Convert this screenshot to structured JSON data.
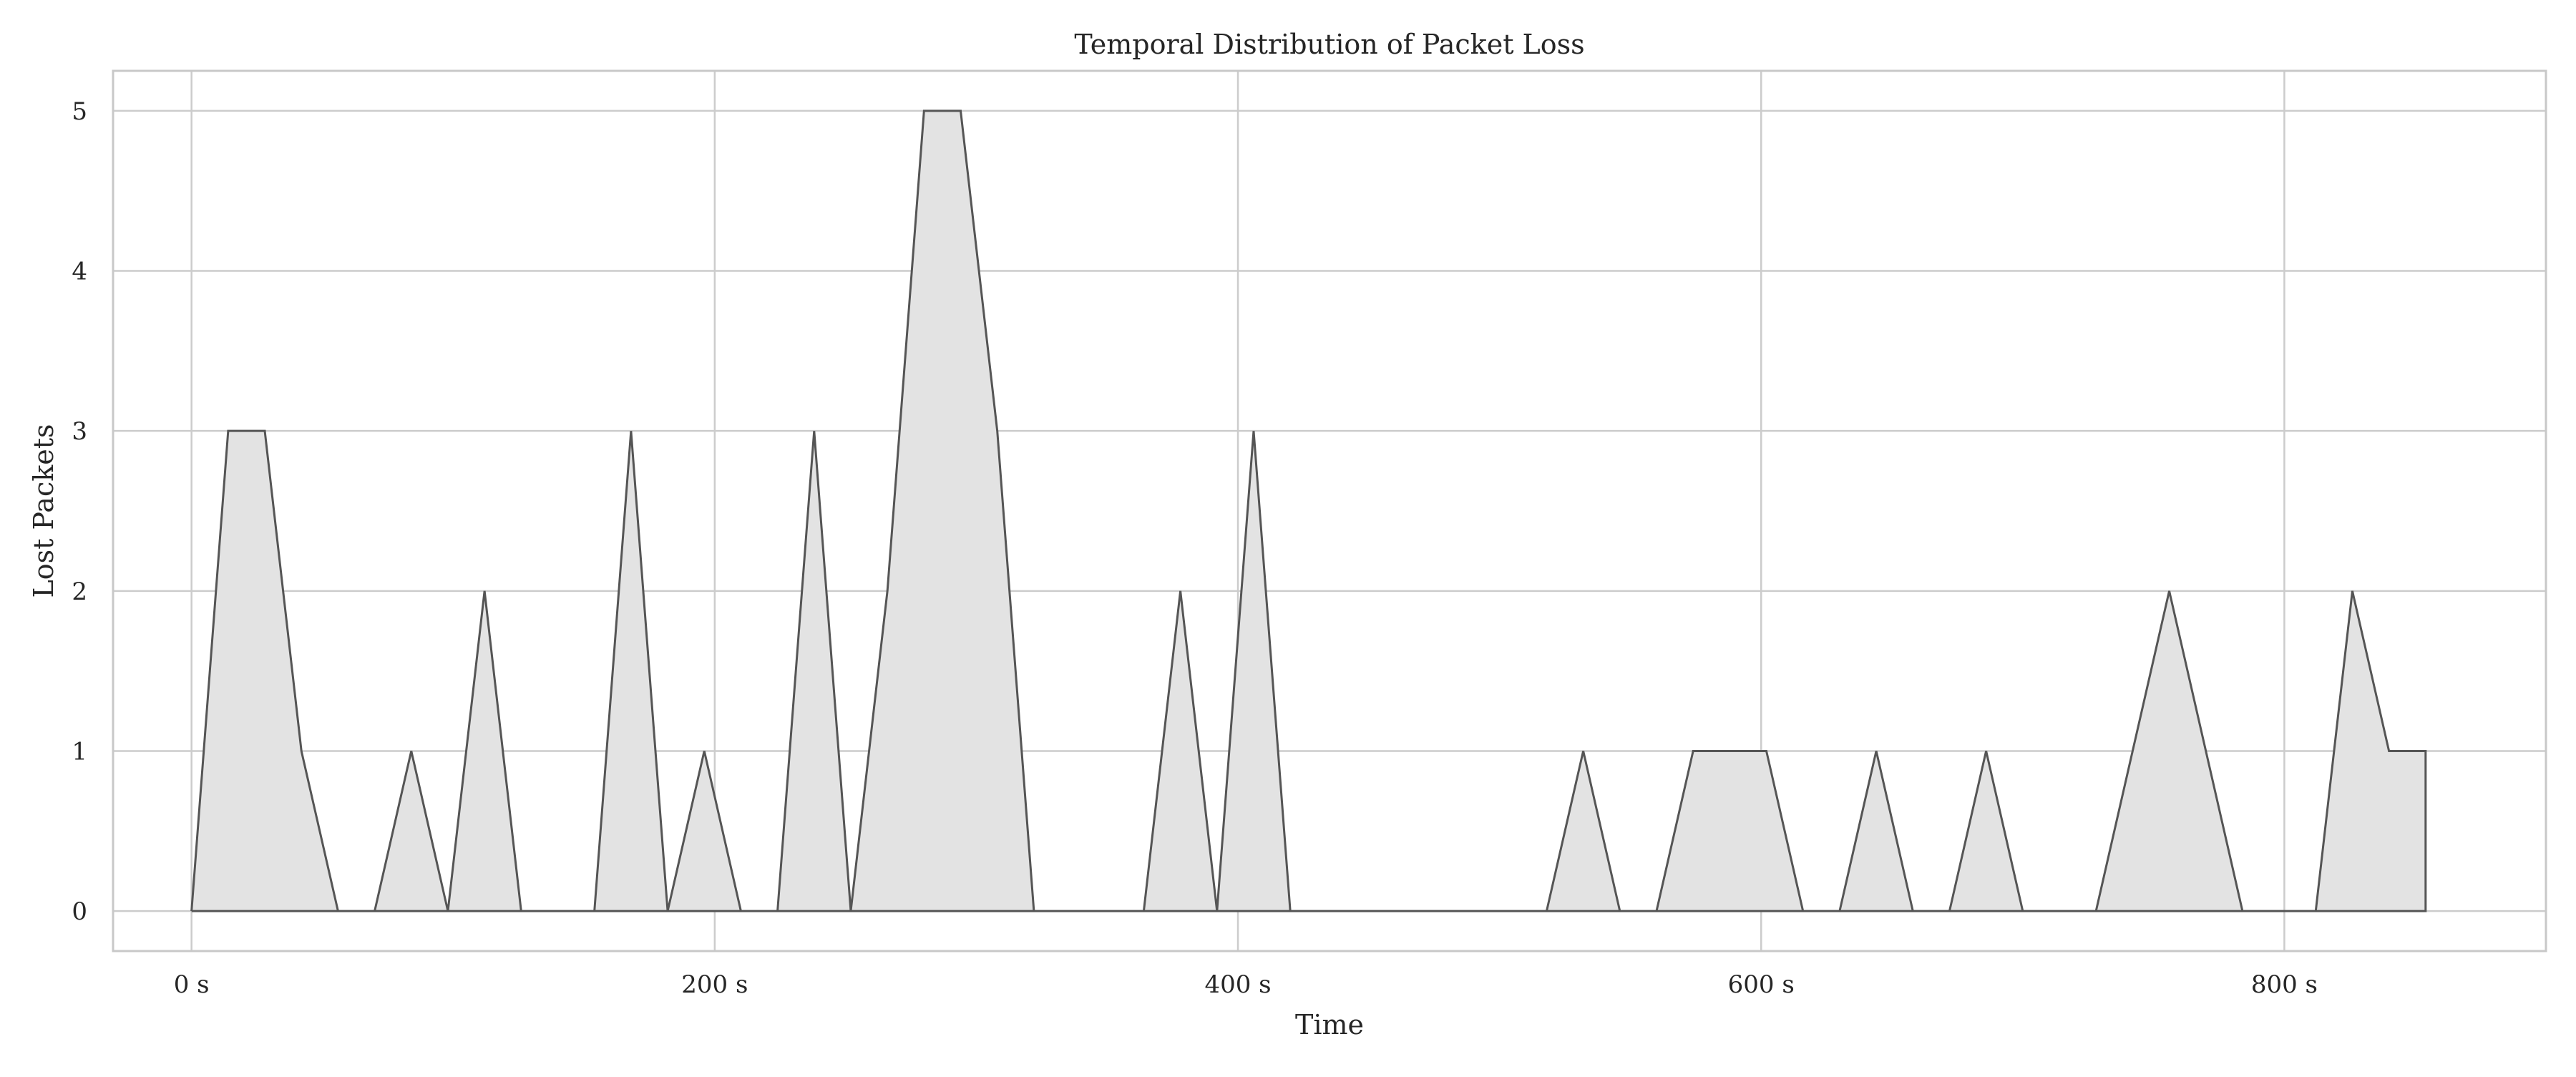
{
  "chart_data": {
    "type": "area",
    "title": "Temporal Distribution of Packet Loss",
    "xlabel": "Time",
    "ylabel": "Lost Packets",
    "xlim": [
      -30,
      900
    ],
    "ylim": [
      -0.25,
      5.25
    ],
    "grid": true,
    "x_ticks": [
      {
        "value": 0,
        "label": "0 s"
      },
      {
        "value": 200,
        "label": "200 s"
      },
      {
        "value": 400,
        "label": "400 s"
      },
      {
        "value": 600,
        "label": "600 s"
      },
      {
        "value": 800,
        "label": "800 s"
      }
    ],
    "y_ticks": [
      {
        "value": 0,
        "label": "0"
      },
      {
        "value": 1,
        "label": "1"
      },
      {
        "value": 2,
        "label": "2"
      },
      {
        "value": 3,
        "label": "3"
      },
      {
        "value": 4,
        "label": "4"
      },
      {
        "value": 5,
        "label": "5"
      }
    ],
    "series": [
      {
        "color": "#555555",
        "fill": "#e3e3e3",
        "x": [
          0,
          14,
          28,
          42,
          56,
          70,
          84,
          98,
          112,
          126,
          140,
          154,
          168,
          182,
          196,
          210,
          224,
          238,
          252,
          266,
          280,
          294,
          308,
          322,
          336,
          350,
          364,
          378,
          392,
          406,
          420,
          434,
          448,
          462,
          476,
          490,
          504,
          518,
          532,
          546,
          560,
          574,
          588,
          602,
          616,
          630,
          644,
          658,
          672,
          686,
          700,
          714,
          728,
          742,
          756,
          770,
          784,
          798,
          812,
          826,
          840,
          854
        ],
        "values": [
          0,
          3,
          3,
          1,
          0,
          0,
          1,
          0,
          2,
          0,
          0,
          0,
          3,
          0,
          1,
          0,
          0,
          3,
          0,
          2,
          5,
          5,
          3,
          0,
          0,
          0,
          0,
          2,
          0,
          3,
          0,
          0,
          0,
          0,
          0,
          0,
          0,
          0,
          1,
          0,
          0,
          1,
          1,
          1,
          0,
          0,
          1,
          0,
          0,
          1,
          0,
          0,
          0,
          1,
          2,
          1,
          0,
          0,
          0,
          2,
          1,
          1
        ]
      }
    ]
  }
}
